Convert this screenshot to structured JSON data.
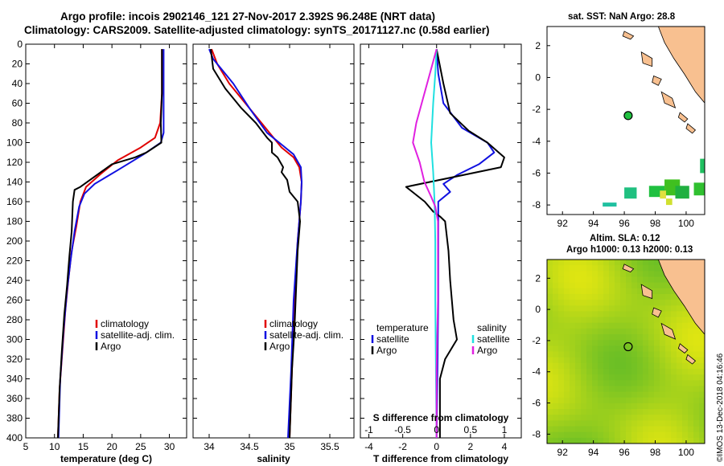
{
  "header": {
    "line1": "Argo profile: incois 2902146_121 27-Nov-2017 2.392S 96.248E (NRT data)",
    "line2": "Climatology: CARS2009. Satellite-adjusted climatology: synTS_20171127.nc (0.58d earlier)"
  },
  "credit": "©IMOS 13-Dec-2018 04:16:46",
  "colors": {
    "climatology": "#e00000",
    "satellite": "#1010e0",
    "argo": "#000000",
    "s_satellite": "#20e0e0",
    "s_argo": "#e020e0",
    "land": "#f8c090"
  },
  "chart_data": [
    {
      "id": "temperature",
      "type": "line",
      "xlabel": "temperature (deg C)",
      "ylabel": "",
      "xlim": [
        5,
        33
      ],
      "ylim": [
        0,
        400
      ],
      "xticks": [
        5,
        10,
        15,
        20,
        25,
        30
      ],
      "yticks": [
        0,
        20,
        40,
        60,
        80,
        100,
        120,
        140,
        160,
        180,
        200,
        220,
        240,
        260,
        280,
        300,
        320,
        340,
        360,
        380,
        400
      ],
      "legend": [
        "climatology",
        "satellite-adj. clim.",
        "Argo"
      ],
      "series": [
        {
          "name": "climatology",
          "color": "#e00000",
          "points": [
            [
              28.7,
              5
            ],
            [
              28.7,
              50
            ],
            [
              28.4,
              80
            ],
            [
              27.5,
              95
            ],
            [
              25,
              105
            ],
            [
              21,
              118
            ],
            [
              18,
              132
            ],
            [
              15.5,
              145
            ],
            [
              14.5,
              160
            ],
            [
              13.8,
              185
            ],
            [
              13,
              210
            ],
            [
              12.4,
              240
            ],
            [
              11.9,
              270
            ],
            [
              11.4,
              310
            ],
            [
              10.9,
              350
            ],
            [
              10.6,
              400
            ]
          ]
        },
        {
          "name": "satellite-adj. clim.",
          "color": "#1010e0",
          "points": [
            [
              29,
              5
            ],
            [
              29,
              50
            ],
            [
              29,
              90
            ],
            [
              28.5,
              100
            ],
            [
              25.5,
              112
            ],
            [
              21,
              128
            ],
            [
              17,
              142
            ],
            [
              15.2,
              152
            ],
            [
              14.3,
              165
            ],
            [
              13.5,
              190
            ],
            [
              12.8,
              220
            ],
            [
              12.2,
              250
            ],
            [
              11.6,
              290
            ],
            [
              11,
              340
            ],
            [
              10.7,
              400
            ]
          ]
        },
        {
          "name": "Argo",
          "color": "#000000",
          "points": [
            [
              28.7,
              5
            ],
            [
              28.7,
              50
            ],
            [
              28.5,
              80
            ],
            [
              28.6,
              100
            ],
            [
              26,
              110
            ],
            [
              24,
              115
            ],
            [
              20,
              122
            ],
            [
              14.5,
              145
            ],
            [
              13.5,
              148
            ],
            [
              13.2,
              160
            ],
            [
              13,
              190
            ],
            [
              12.6,
              215
            ],
            [
              12.2,
              245
            ],
            [
              11.7,
              275
            ],
            [
              11.3,
              310
            ],
            [
              10.9,
              350
            ],
            [
              10.6,
              400
            ]
          ]
        }
      ]
    },
    {
      "id": "salinity",
      "type": "line",
      "xlabel": "salinity",
      "ylabel": "",
      "xlim": [
        33.8,
        35.8
      ],
      "xticks": [
        34,
        34.5,
        35,
        35.5
      ],
      "ylim": [
        0,
        400
      ],
      "legend": [
        "climatology",
        "satellite-adj. clim.",
        "Argo"
      ],
      "series": [
        {
          "name": "climatology",
          "color": "#e00000",
          "points": [
            [
              34.03,
              5
            ],
            [
              34.1,
              20
            ],
            [
              34.25,
              40
            ],
            [
              34.45,
              60
            ],
            [
              34.6,
              75
            ],
            [
              34.75,
              90
            ],
            [
              34.9,
              105
            ],
            [
              35.05,
              115
            ],
            [
              35.12,
              125
            ],
            [
              35.15,
              140
            ],
            [
              35.14,
              160
            ],
            [
              35.1,
              200
            ],
            [
              35.06,
              260
            ],
            [
              35.03,
              330
            ],
            [
              35,
              400
            ]
          ]
        },
        {
          "name": "satellite-adj. clim.",
          "color": "#1010e0",
          "points": [
            [
              34,
              5
            ],
            [
              34.05,
              15
            ],
            [
              34.15,
              25
            ],
            [
              34.3,
              40
            ],
            [
              34.5,
              65
            ],
            [
              34.72,
              90
            ],
            [
              34.9,
              102
            ],
            [
              35.05,
              112
            ],
            [
              35.14,
              125
            ],
            [
              35.15,
              140
            ],
            [
              35.14,
              160
            ],
            [
              35.1,
              200
            ],
            [
              35.05,
              260
            ],
            [
              35.02,
              330
            ],
            [
              34.98,
              400
            ]
          ]
        },
        {
          "name": "Argo",
          "color": "#000000",
          "points": [
            [
              34.02,
              5
            ],
            [
              34.05,
              25
            ],
            [
              34.2,
              45
            ],
            [
              34.4,
              65
            ],
            [
              34.58,
              80
            ],
            [
              34.72,
              95
            ],
            [
              34.78,
              100
            ],
            [
              34.78,
              110
            ],
            [
              34.85,
              115
            ],
            [
              34.92,
              125
            ],
            [
              34.9,
              130
            ],
            [
              34.97,
              138
            ],
            [
              35,
              150
            ],
            [
              35.1,
              160
            ],
            [
              35.13,
              180
            ],
            [
              35.1,
              210
            ],
            [
              35.08,
              250
            ],
            [
              35.06,
              290
            ],
            [
              35.03,
              330
            ],
            [
              35,
              400
            ]
          ]
        }
      ]
    },
    {
      "id": "differences",
      "type": "line",
      "xlabel": "T difference from climatology",
      "xlabel_top": "S difference from climatology",
      "xlim": [
        -4.5,
        5
      ],
      "ylim": [
        0,
        400
      ],
      "xticks": [
        -4,
        -2,
        0,
        2,
        4
      ],
      "xticks_top_values": [
        -1,
        -0.5,
        0,
        0.5,
        1
      ],
      "xticks_top_labels": [
        "-1",
        "-0.5",
        "0",
        "0.5",
        "1"
      ],
      "legend_t": {
        "title": "temperature",
        "items": [
          "satellite",
          "Argo"
        ]
      },
      "legend_s": {
        "title": "salinity",
        "items": [
          "satellite",
          "Argo"
        ]
      },
      "series": [
        {
          "name": "T satellite",
          "color": "#1010e0",
          "axis": "T",
          "points": [
            [
              0,
              5
            ],
            [
              0.1,
              30
            ],
            [
              0.4,
              60
            ],
            [
              1.5,
              85
            ],
            [
              3,
              100
            ],
            [
              3.4,
              110
            ],
            [
              2.5,
              122
            ],
            [
              1.2,
              133
            ],
            [
              0.4,
              142
            ],
            [
              0.8,
              150
            ],
            [
              0.1,
              160
            ],
            [
              0.1,
              200
            ],
            [
              0.1,
              260
            ],
            [
              0.05,
              330
            ],
            [
              0,
              400
            ]
          ]
        },
        {
          "name": "T Argo",
          "color": "#000000",
          "axis": "T",
          "points": [
            [
              0,
              5
            ],
            [
              0.4,
              40
            ],
            [
              0.8,
              70
            ],
            [
              1.9,
              88
            ],
            [
              3,
              100
            ],
            [
              4,
              115
            ],
            [
              3.8,
              125
            ],
            [
              -1.8,
              145
            ],
            [
              -0.7,
              160
            ],
            [
              -0.2,
              170
            ],
            [
              0.2,
              175
            ],
            [
              0.5,
              180
            ],
            [
              0.7,
              210
            ],
            [
              0.8,
              240
            ],
            [
              0.9,
              260
            ],
            [
              1,
              280
            ],
            [
              1.2,
              300
            ],
            [
              0.5,
              320
            ],
            [
              0.2,
              340
            ],
            [
              0.2,
              360
            ],
            [
              0.2,
              400
            ]
          ]
        },
        {
          "name": "S satellite",
          "color": "#20e0e0",
          "axis": "S",
          "points": [
            [
              0,
              5
            ],
            [
              -0.02,
              30
            ],
            [
              -0.05,
              60
            ],
            [
              -0.08,
              100
            ],
            [
              -0.05,
              130
            ],
            [
              -0.03,
              160
            ],
            [
              -0.02,
              200
            ],
            [
              -0.02,
              260
            ],
            [
              0,
              400
            ]
          ]
        },
        {
          "name": "S Argo",
          "color": "#e020e0",
          "axis": "S",
          "points": [
            [
              0,
              5
            ],
            [
              -0.08,
              25
            ],
            [
              -0.2,
              55
            ],
            [
              -0.3,
              80
            ],
            [
              -0.35,
              100
            ],
            [
              -0.3,
              110
            ],
            [
              -0.25,
              120
            ],
            [
              -0.18,
              140
            ],
            [
              -0.08,
              155
            ],
            [
              -0.02,
              165
            ],
            [
              0.02,
              180
            ],
            [
              0.02,
              260
            ],
            [
              0,
              330
            ],
            [
              0,
              400
            ]
          ]
        }
      ]
    },
    {
      "id": "sst_map",
      "type": "heatmap",
      "title": "sat. SST: NaN Argo: 28.8",
      "xlim": [
        91,
        101.2
      ],
      "ylim": [
        -8.6,
        3.2
      ],
      "xticks": [
        92,
        94,
        96,
        98,
        100
      ],
      "yticks": [
        -8,
        -6,
        -4,
        -2,
        0,
        2
      ],
      "argo_position": [
        96.25,
        -2.39
      ]
    },
    {
      "id": "sla_map",
      "type": "heatmap",
      "title": "Altim. SLA: 0.12",
      "subtitle": "Argo h1000: 0.13 h2000: 0.13",
      "xlim": [
        91,
        101.2
      ],
      "ylim": [
        -8.6,
        3.2
      ],
      "xticks": [
        92,
        94,
        96,
        98,
        100
      ],
      "yticks": [
        -8,
        -6,
        -4,
        -2,
        0,
        2
      ],
      "argo_position": [
        96.25,
        -2.39
      ]
    }
  ]
}
